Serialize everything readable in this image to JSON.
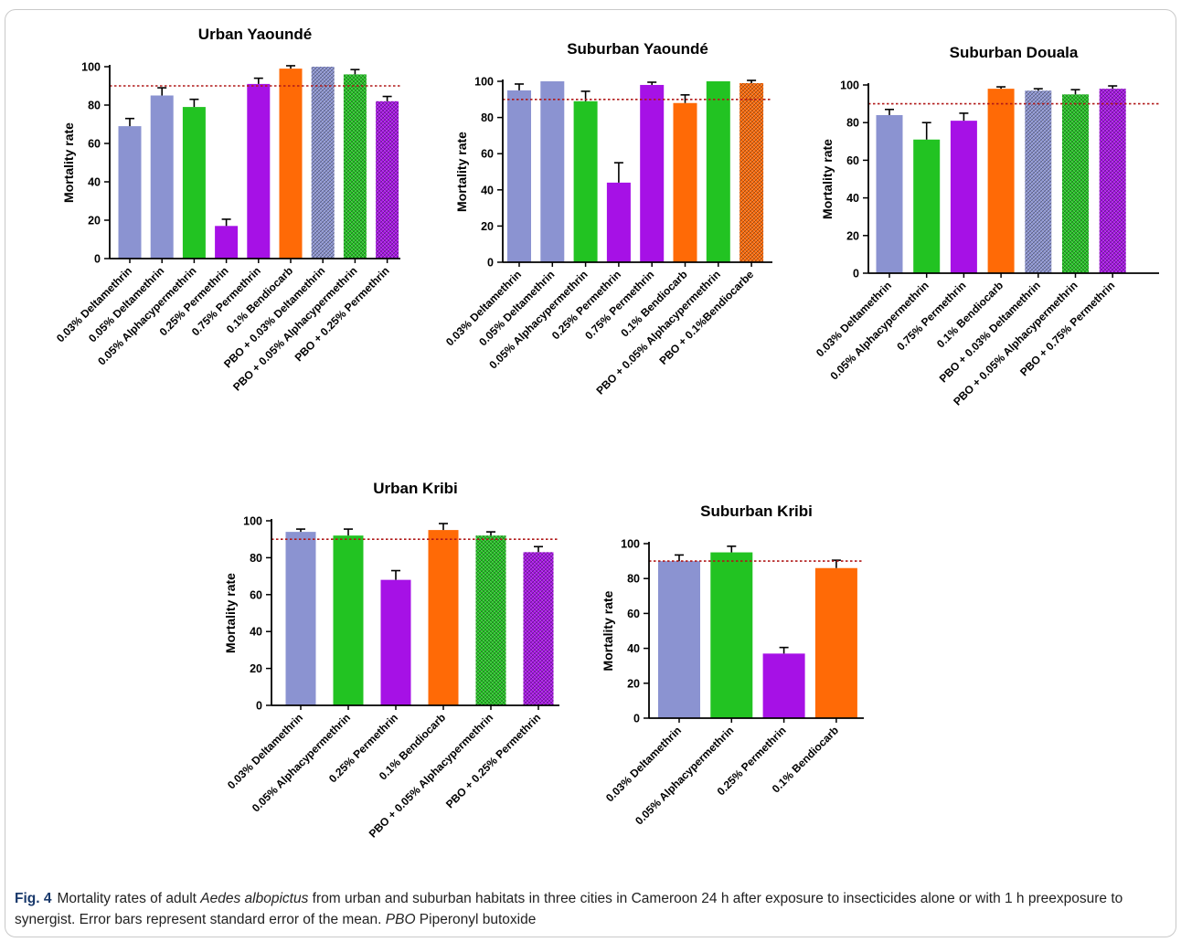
{
  "colors": {
    "blue": "#8b93d1",
    "green": "#22c322",
    "purple": "#a611e6",
    "orange": "#ff6a06",
    "threshold_line": "#b01818"
  },
  "icons": {
    "hatched_bar_pattern": "crosshatch-pattern-icon"
  },
  "caption": {
    "label": "Fig. 4",
    "part1": "Mortality rates of adult ",
    "species": "Aedes albopictus",
    "part2": " from urban and suburban habitats in three cities in Cameroon 24 h after exposure to insecticides alone or with 1 h preexposure to synergist. Error bars represent standard error of the mean. ",
    "abbr": "PBO",
    "part3": " Piperonyl butoxide"
  },
  "chart_data": [
    {
      "type": "bar",
      "title": "Urban Yaoundé",
      "ylabel": "Mortality rate",
      "xlabel": "",
      "ylim": [
        0,
        100
      ],
      "yticks": [
        0,
        20,
        40,
        60,
        80,
        100
      ],
      "threshold": 90,
      "categories": [
        "0.03% Deltamethrin",
        "0.05% Deltamethrin",
        "0.05% Alphacypermethrin",
        "0.25% Permethrin",
        "0.75% Permethrin",
        "0.1% Bendiocarb",
        "PBO + 0.03% Deltamethrin",
        "PBO + 0.05% Alphacypermethrin",
        "PBO  + 0.25% Permethrin"
      ],
      "values": [
        69,
        85,
        79,
        17,
        91,
        99,
        100,
        96,
        82
      ],
      "errors": [
        4,
        4,
        4,
        3.5,
        3,
        1.5,
        0,
        2.5,
        2.5
      ],
      "bar_colors": [
        "blue",
        "blue",
        "green",
        "purple",
        "purple",
        "orange",
        "blue",
        "green",
        "purple"
      ],
      "hatched": [
        false,
        false,
        false,
        false,
        false,
        false,
        true,
        true,
        true
      ]
    },
    {
      "type": "bar",
      "title": "Suburban Yaoundé",
      "ylabel": "Mortality rate",
      "xlabel": "",
      "ylim": [
        0,
        100
      ],
      "yticks": [
        0,
        20,
        40,
        60,
        80,
        100
      ],
      "threshold": 90,
      "categories": [
        "0.03% Deltamethrin",
        "0.05% Deltamethrin",
        "0.05% Alphacypermethrin",
        "0.25% Permethrin",
        "0.75% Permethrin",
        "0.1% Bendiocarb",
        "PBO + 0.05% Alphacypermethrin",
        "PBO + 0.1%Bendiocarbe"
      ],
      "values": [
        95,
        100,
        89,
        44,
        98,
        88,
        100,
        99
      ],
      "errors": [
        3.5,
        0,
        5.5,
        11,
        1.5,
        4.5,
        0,
        1.5
      ],
      "bar_colors": [
        "blue",
        "blue",
        "green",
        "purple",
        "purple",
        "orange",
        "green",
        "orange"
      ],
      "hatched": [
        false,
        false,
        false,
        false,
        false,
        false,
        false,
        true
      ]
    },
    {
      "type": "bar",
      "title": "Suburban Douala",
      "ylabel": "Mortality rate",
      "xlabel": "",
      "ylim": [
        0,
        100
      ],
      "yticks": [
        0,
        20,
        40,
        60,
        80,
        100
      ],
      "threshold": 90,
      "categories": [
        "0.03% Deltamethrin",
        "0.05% Alphacypermethrin",
        "0.75% Permethrin",
        "0.1% Bendiocarb",
        "PBO + 0.03% Deltamethrin",
        "PBO + 0.05% Alphacypermethrin",
        "PBO + 0.75% Permethrin"
      ],
      "values": [
        84,
        71,
        81,
        98,
        97,
        95,
        98
      ],
      "errors": [
        3,
        9,
        4,
        1,
        1,
        2.5,
        1.5
      ],
      "bar_colors": [
        "blue",
        "green",
        "purple",
        "orange",
        "blue",
        "green",
        "purple"
      ],
      "hatched": [
        false,
        false,
        false,
        false,
        true,
        true,
        true
      ]
    },
    {
      "type": "bar",
      "title": "Urban Kribi",
      "ylabel": "Mortality rate",
      "xlabel": "",
      "ylim": [
        0,
        100
      ],
      "yticks": [
        0,
        20,
        40,
        60,
        80,
        100
      ],
      "threshold": 90,
      "categories": [
        "0.03% Deltamethrin",
        "0.05% Alphacypermethrin",
        "0.25% Permethrin",
        "0.1% Bendiocarb",
        "PBO + 0.05% Alphacypermethrin",
        "PBO + 0.25% Permethrin"
      ],
      "values": [
        94,
        92,
        68,
        95,
        92,
        83
      ],
      "errors": [
        1.5,
        3.5,
        5,
        3.5,
        2,
        3
      ],
      "bar_colors": [
        "blue",
        "green",
        "purple",
        "orange",
        "green",
        "purple"
      ],
      "hatched": [
        false,
        false,
        false,
        false,
        true,
        true
      ]
    },
    {
      "type": "bar",
      "title": "Suburban Kribi",
      "ylabel": "Mortality rate",
      "xlabel": "",
      "ylim": [
        0,
        100
      ],
      "yticks": [
        0,
        20,
        40,
        60,
        80,
        100
      ],
      "threshold": 90,
      "categories": [
        "0.03% Deltamethrin",
        "0.05% Alphacypermethrin",
        "0.25% Permethrin",
        "0.1% Bendiocarb"
      ],
      "values": [
        90,
        95,
        37,
        86
      ],
      "errors": [
        3.5,
        3.5,
        3.5,
        4.5
      ],
      "bar_colors": [
        "blue",
        "green",
        "purple",
        "orange"
      ],
      "hatched": [
        false,
        false,
        false,
        false
      ]
    }
  ]
}
